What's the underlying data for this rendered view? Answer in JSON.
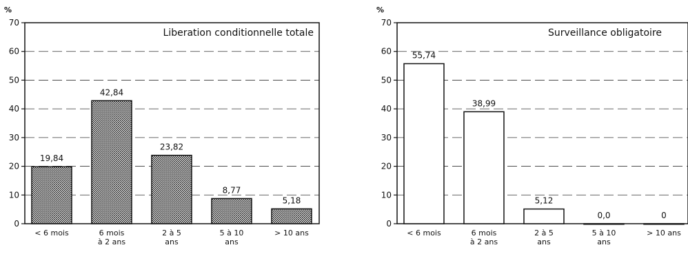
{
  "chart_data": [
    {
      "type": "bar",
      "title": "Liberation conditionnelle totale",
      "ylabel": "%",
      "xlabel": "",
      "ylim": [
        0,
        70
      ],
      "yticks": [
        0,
        10,
        20,
        30,
        40,
        50,
        60,
        70
      ],
      "grid": true,
      "bar_fill": "pattern",
      "categories": [
        [
          "< 6 mois"
        ],
        [
          "6 mois",
          "à 2 ans"
        ],
        [
          "2 à 5",
          "ans"
        ],
        [
          "5 à 10",
          "ans"
        ],
        [
          "> 10 ans"
        ]
      ],
      "values": [
        19.84,
        42.84,
        23.82,
        8.77,
        5.18
      ],
      "value_labels": [
        "19,84",
        "42,84",
        "23,82",
        "8,77",
        "5,18"
      ]
    },
    {
      "type": "bar",
      "title": "Surveillance obligatoire",
      "ylabel": "%",
      "xlabel": "",
      "ylim": [
        0,
        70
      ],
      "yticks": [
        0,
        10,
        20,
        30,
        40,
        50,
        60,
        70
      ],
      "grid": true,
      "bar_fill": "white",
      "categories": [
        [
          "< 6 mois"
        ],
        [
          "6 mois",
          "à 2 ans"
        ],
        [
          "2 à 5",
          "ans"
        ],
        [
          "5 à 10",
          "ans"
        ],
        [
          "> 10 ans"
        ]
      ],
      "values": [
        55.74,
        38.99,
        5.12,
        0.0,
        0
      ],
      "value_labels": [
        "55,74",
        "38,99",
        "5,12",
        "0,0",
        "0"
      ]
    }
  ]
}
